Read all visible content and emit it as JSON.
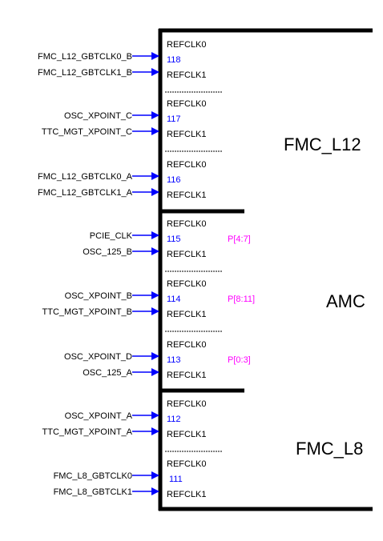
{
  "colors": {
    "arrow": "#0000ff",
    "bank_number": "#0000ff",
    "lanes": "#ff00ff",
    "border": "#000000"
  },
  "groups": [
    {
      "label": "FMC_L12"
    },
    {
      "label": "AMC"
    },
    {
      "label": "FMC_L8"
    }
  ],
  "banks": [
    {
      "number": "118",
      "clk0": "REFCLK0",
      "clk1": "REFCLK1",
      "lanes": "",
      "input0": "FMC_L12_GBTCLK0_B",
      "input1": "FMC_L12_GBTCLK1_B"
    },
    {
      "number": "117",
      "clk0": "REFCLK0",
      "clk1": "REFCLK1",
      "lanes": "",
      "input0": "OSC_XPOINT_C",
      "input1": "TTC_MGT_XPOINT_C"
    },
    {
      "number": "116",
      "clk0": "REFCLK0",
      "clk1": "REFCLK1",
      "lanes": "",
      "input0": "FMC_L12_GBTCLK0_A",
      "input1": "FMC_L12_GBTCLK1_A"
    },
    {
      "number": "115",
      "clk0": "REFCLK0",
      "clk1": "REFCLK1",
      "lanes": "P[4:7]",
      "input0": "PCIE_CLK",
      "input1": "OSC_125_B"
    },
    {
      "number": "114",
      "clk0": "REFCLK0",
      "clk1": "REFCLK1",
      "lanes": "P[8:11]",
      "input0": "OSC_XPOINT_B",
      "input1": "TTC_MGT_XPOINT_B"
    },
    {
      "number": "113",
      "clk0": "REFCLK0",
      "clk1": "REFCLK1",
      "lanes": "P[0:3]",
      "input0": "OSC_XPOINT_D",
      "input1": "OSC_125_A"
    },
    {
      "number": "112",
      "clk0": "REFCLK0",
      "clk1": "REFCLK1",
      "lanes": "",
      "input0": "OSC_XPOINT_A",
      "input1": "TTC_MGT_XPOINT_A"
    },
    {
      "number": "111",
      "clk0": "REFCLK0",
      "clk1": "REFCLK1",
      "lanes": "",
      "input0": "FMC_L8_GBTCLK0",
      "input1": "FMC_L8_GBTCLK1"
    }
  ]
}
